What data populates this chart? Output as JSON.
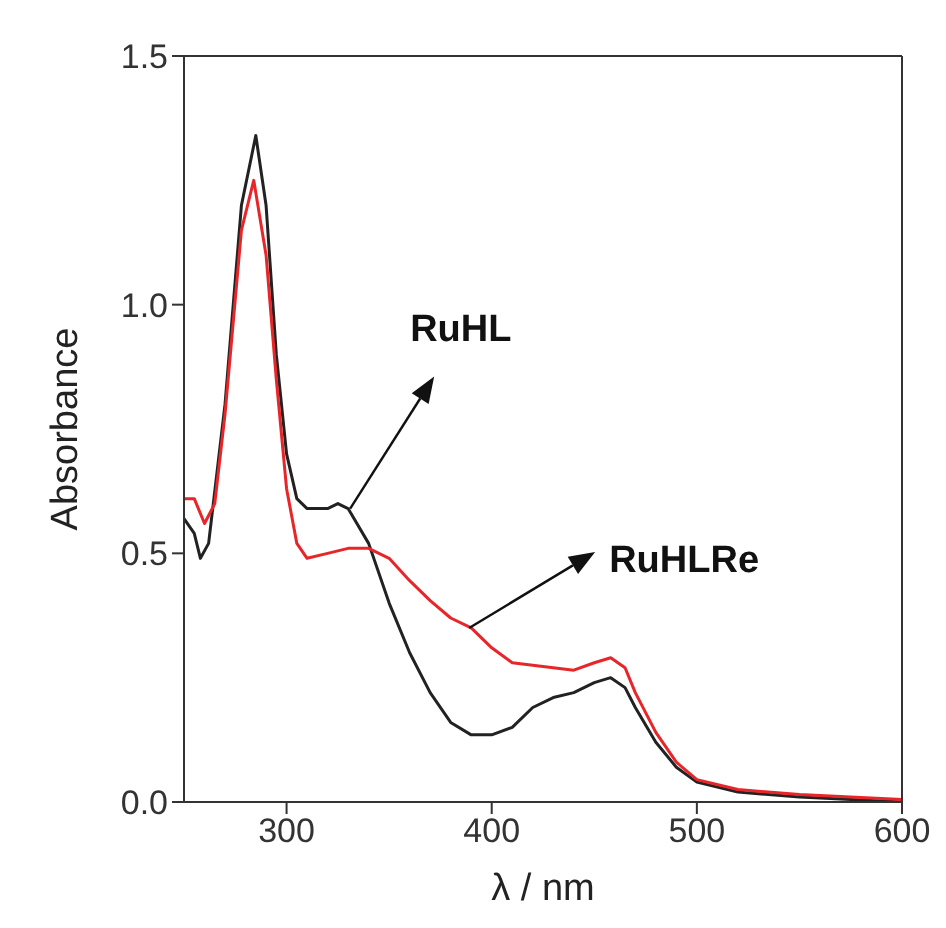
{
  "chart_data": {
    "type": "line",
    "xlabel": "λ / nm",
    "ylabel": "Absorbance",
    "xlim": [
      250,
      600
    ],
    "xticks": [
      300,
      400,
      500,
      600
    ],
    "ylim": [
      0,
      1.5
    ],
    "yticks": [
      {
        "value": 0,
        "label": "0.0"
      },
      {
        "value": 0.5,
        "label": "0.5"
      },
      {
        "value": 1,
        "label": "1.0"
      },
      {
        "value": 1.5,
        "label": "1.5"
      }
    ],
    "marker": "none",
    "line_style": "solid",
    "series": [
      {
        "color": "#222222",
        "x": [
          250,
          255,
          258,
          262,
          270,
          278,
          285,
          290,
          295,
          300,
          305,
          310,
          320,
          325,
          330,
          340,
          350,
          360,
          370,
          380,
          390,
          400,
          410,
          420,
          430,
          440,
          450,
          458,
          465,
          470,
          480,
          490,
          500,
          520,
          550,
          600
        ],
        "values": [
          0.57,
          0.54,
          0.49,
          0.52,
          0.8,
          1.2,
          1.34,
          1.2,
          0.9,
          0.7,
          0.61,
          0.59,
          0.59,
          0.6,
          0.59,
          0.52,
          0.4,
          0.3,
          0.22,
          0.16,
          0.135,
          0.135,
          0.15,
          0.19,
          0.21,
          0.22,
          0.24,
          0.25,
          0.23,
          0.19,
          0.12,
          0.07,
          0.04,
          0.02,
          0.01,
          0.0
        ]
      },
      {
        "color": "#e8262a",
        "x": [
          250,
          255,
          260,
          265,
          270,
          278,
          284,
          290,
          295,
          300,
          305,
          310,
          320,
          330,
          340,
          350,
          360,
          370,
          380,
          390,
          400,
          410,
          420,
          430,
          440,
          450,
          458,
          465,
          470,
          480,
          490,
          500,
          520,
          550,
          600
        ],
        "values": [
          0.61,
          0.61,
          0.56,
          0.6,
          0.78,
          1.15,
          1.25,
          1.1,
          0.85,
          0.63,
          0.52,
          0.49,
          0.5,
          0.51,
          0.51,
          0.49,
          0.445,
          0.405,
          0.37,
          0.35,
          0.31,
          0.28,
          0.275,
          0.27,
          0.265,
          0.28,
          0.29,
          0.27,
          0.22,
          0.14,
          0.08,
          0.045,
          0.025,
          0.015,
          0.005
        ]
      }
    ],
    "annotations": [
      {
        "text": "RuHL",
        "x": 331,
        "y": 0.59
      },
      {
        "text": "RuHLRe",
        "x": 389,
        "y": 0.35
      }
    ]
  }
}
